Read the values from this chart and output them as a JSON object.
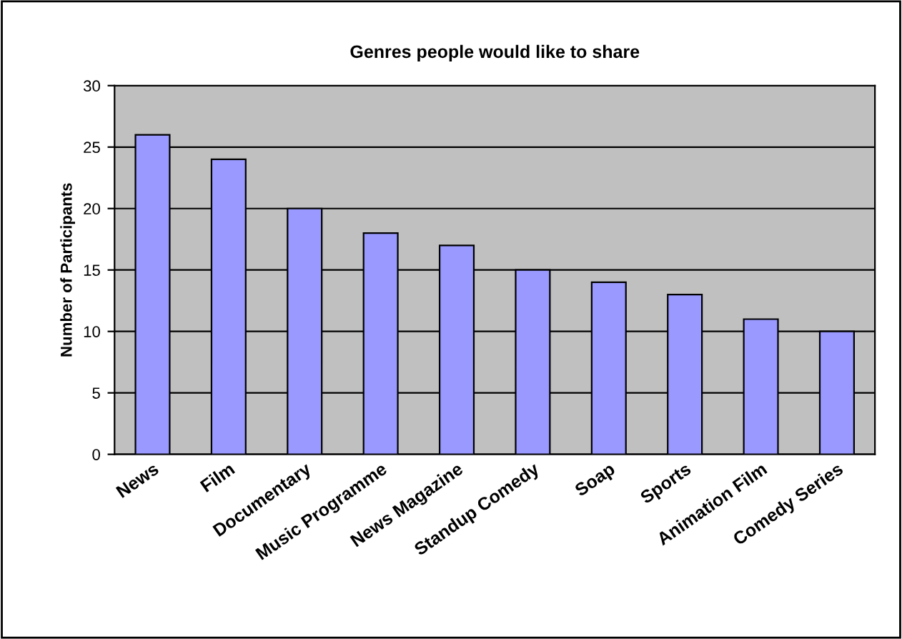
{
  "chart_data": {
    "type": "bar",
    "title": "Genres people would like to share",
    "ylabel": "Number of Participants",
    "categories": [
      "News",
      "Film",
      "Documentary",
      "Music Programme",
      "News Magazine",
      "Standup Comedy",
      "Soap",
      "Sports",
      "Animation Film",
      "Comedy Series"
    ],
    "values": [
      26,
      24,
      20,
      18,
      17,
      15,
      14,
      13,
      11,
      10
    ],
    "color": "#9999ff",
    "ylim": [
      0,
      30
    ],
    "yticks": [
      0,
      5,
      10,
      15,
      20,
      25,
      30
    ],
    "grid": "y",
    "legend": false
  }
}
